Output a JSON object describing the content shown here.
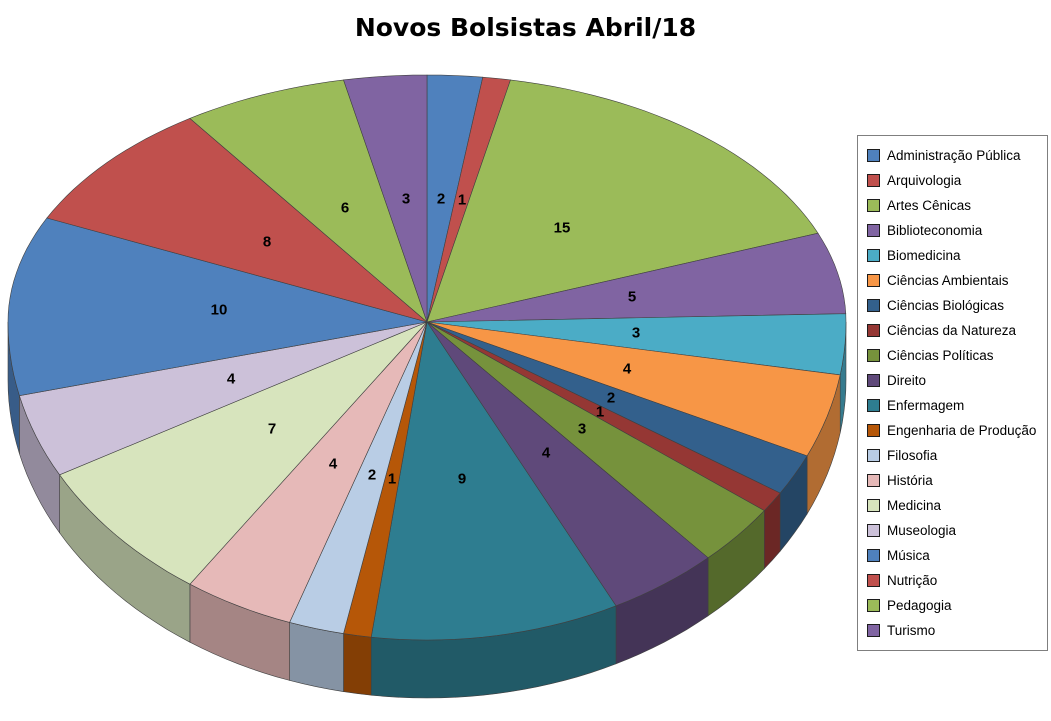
{
  "page": {
    "background": "#FFFFFF"
  },
  "chart_data": {
    "type": "pie",
    "style": "3d-pie",
    "title": "Novos Bolsistas Abril/18",
    "direction": "clockwise",
    "start_angle_deg": 0,
    "total": 94,
    "data_labels": "value",
    "label_color": "#000000",
    "legend_position": "right",
    "grid": false,
    "categories": [
      "Administração Pública",
      "Arquivologia",
      "Artes Cênicas",
      "Biblioteconomia",
      "Biomedicina",
      "Ciências Ambientais",
      "Ciências Biológicas",
      "Ciências da Natureza",
      "Ciências Políticas",
      "Direito",
      "Enfermagem",
      "Engenharia de Produção",
      "Filosofia",
      "História",
      "Medicina",
      "Museologia",
      "Música",
      "Nutrição",
      "Pedagogia",
      "Turismo"
    ],
    "values": [
      2,
      1,
      15,
      5,
      3,
      4,
      2,
      1,
      3,
      4,
      9,
      1,
      2,
      4,
      7,
      4,
      10,
      8,
      6,
      3
    ],
    "colors": [
      "#4F81BD",
      "#C0504D",
      "#9BBB59",
      "#8064A2",
      "#4BACC6",
      "#F79646",
      "#33608C",
      "#953734",
      "#76923C",
      "#5F497A",
      "#2E7D90",
      "#B65708",
      "#B9CDE5",
      "#E6B9B8",
      "#D7E4BD",
      "#CCC1D9",
      "#4F81BD",
      "#C0504D",
      "#9BBB59",
      "#8064A2"
    ]
  }
}
